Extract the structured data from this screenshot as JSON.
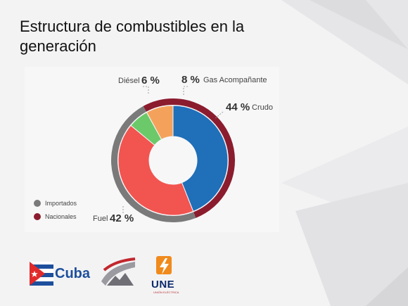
{
  "slide": {
    "title": "Estructura de combustibles en la generación"
  },
  "chart_data": {
    "type": "pie",
    "variant": "donut",
    "categories": [
      "Crudo",
      "Fuel",
      "Diésel",
      "Gas Acompañante"
    ],
    "values": [
      44,
      42,
      6,
      8
    ],
    "value_labels": [
      "44 %",
      "42 %",
      "6 %",
      "8 %"
    ],
    "colors": [
      "#1f6fb9",
      "#f25450",
      "#6cc96a",
      "#f4a25b"
    ],
    "outer_ring": {
      "groups": [
        {
          "name": "Nacionales",
          "value": 52,
          "color": "#8b1c2e"
        },
        {
          "name": "Importados",
          "value": 48,
          "color": "#7a7a7a"
        }
      ]
    },
    "legend": {
      "position": "bottom-left",
      "entries": [
        {
          "label": "Importados",
          "color": "#7a7a7a"
        },
        {
          "label": "Nacionales",
          "color": "#8b1c2e"
        }
      ]
    }
  },
  "logos": {
    "cuba_text": "Cuba",
    "une_text": "UNE",
    "une_subtext": "UNIÓN ELÉCTRICA"
  }
}
